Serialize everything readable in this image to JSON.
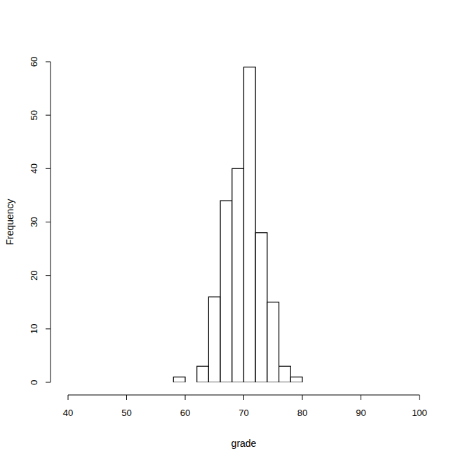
{
  "chart_data": {
    "type": "histogram",
    "x_label": "grade",
    "y_label": "Frequency",
    "bins": [
      58,
      60,
      62,
      64,
      66,
      68,
      70,
      72,
      74,
      76,
      78,
      80
    ],
    "values": [
      1,
      0,
      3,
      16,
      34,
      40,
      59,
      28,
      15,
      3,
      1
    ],
    "color": "#ffffff",
    "xlim": [
      40,
      100
    ],
    "xticks": [
      40,
      50,
      60,
      70,
      80,
      90,
      100
    ],
    "ylim": [
      0,
      60
    ],
    "yticks": [
      0,
      10,
      20,
      30,
      40,
      50,
      60
    ]
  }
}
